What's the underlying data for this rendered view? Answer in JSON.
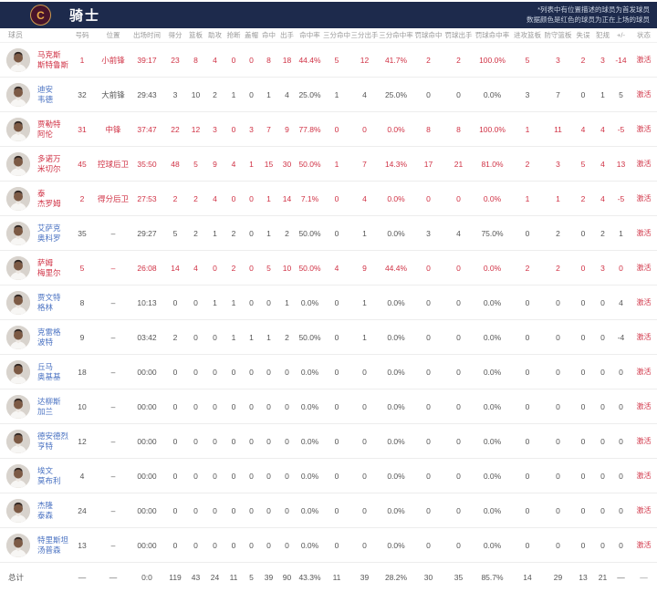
{
  "team_header": {
    "team_name": "骑士",
    "logo_letter": "C",
    "note_line1": "*列表中有位置描述的球员为首发球员",
    "note_line2": "数据颜色是红色的球员为正在上场的球员"
  },
  "colors": {
    "header_bg": "#1d2a4c",
    "on_court_red": "#d03245",
    "player_name_blue": "#4a72c2",
    "data_gray": "#555555",
    "column_header_gray": "#9a9a9a"
  },
  "columns": [
    "球员",
    "号码",
    "位置",
    "出场时间",
    "得分",
    "篮板",
    "助攻",
    "抢断",
    "盖帽",
    "命中",
    "出手",
    "命中率",
    "三分命中",
    "三分出手",
    "三分命中率",
    "罚球命中",
    "罚球出手",
    "罚球命中率",
    "进攻篮板",
    "防守篮板",
    "失误",
    "犯规",
    "+/-",
    "状态"
  ],
  "players": [
    {
      "name_line1": "马克斯",
      "name_line2": "斯特鲁斯",
      "number": "1",
      "position": "小前锋",
      "minutes": "39:17",
      "stats": [
        "23",
        "8",
        "4",
        "0",
        "0",
        "8",
        "18",
        "44.4%",
        "5",
        "12",
        "41.7%",
        "2",
        "2",
        "100.0%",
        "5",
        "3",
        "2",
        "3",
        "-14"
      ],
      "status": "激活",
      "on_court": true
    },
    {
      "name_line1": "迪安",
      "name_line2": "韦德",
      "number": "32",
      "position": "大前锋",
      "minutes": "29:43",
      "stats": [
        "3",
        "10",
        "2",
        "1",
        "0",
        "1",
        "4",
        "25.0%",
        "1",
        "4",
        "25.0%",
        "0",
        "0",
        "0.0%",
        "3",
        "7",
        "0",
        "1",
        "5"
      ],
      "status": "激活",
      "on_court": false
    },
    {
      "name_line1": "贾勒特",
      "name_line2": "阿伦",
      "number": "31",
      "position": "中锋",
      "minutes": "37:47",
      "stats": [
        "22",
        "12",
        "3",
        "0",
        "3",
        "7",
        "9",
        "77.8%",
        "0",
        "0",
        "0.0%",
        "8",
        "8",
        "100.0%",
        "1",
        "11",
        "4",
        "4",
        "-5"
      ],
      "status": "激活",
      "on_court": true
    },
    {
      "name_line1": "多诺万",
      "name_line2": "米切尔",
      "number": "45",
      "position": "控球后卫",
      "minutes": "35:50",
      "stats": [
        "48",
        "5",
        "9",
        "4",
        "1",
        "15",
        "30",
        "50.0%",
        "1",
        "7",
        "14.3%",
        "17",
        "21",
        "81.0%",
        "2",
        "3",
        "5",
        "4",
        "13"
      ],
      "status": "激活",
      "on_court": true
    },
    {
      "name_line1": "泰",
      "name_line2": "杰罗姆",
      "number": "2",
      "position": "得分后卫",
      "minutes": "27:53",
      "stats": [
        "2",
        "2",
        "4",
        "0",
        "0",
        "1",
        "14",
        "7.1%",
        "0",
        "4",
        "0.0%",
        "0",
        "0",
        "0.0%",
        "1",
        "1",
        "2",
        "4",
        "-5"
      ],
      "status": "激活",
      "on_court": true
    },
    {
      "name_line1": "艾萨克",
      "name_line2": "奥科罗",
      "number": "35",
      "position": "–",
      "minutes": "29:27",
      "stats": [
        "5",
        "2",
        "1",
        "2",
        "0",
        "1",
        "2",
        "50.0%",
        "0",
        "1",
        "0.0%",
        "3",
        "4",
        "75.0%",
        "0",
        "2",
        "0",
        "2",
        "1"
      ],
      "status": "激活",
      "on_court": false
    },
    {
      "name_line1": "萨姆",
      "name_line2": "梅里尔",
      "number": "5",
      "position": "–",
      "minutes": "26:08",
      "stats": [
        "14",
        "4",
        "0",
        "2",
        "0",
        "5",
        "10",
        "50.0%",
        "4",
        "9",
        "44.4%",
        "0",
        "0",
        "0.0%",
        "2",
        "2",
        "0",
        "3",
        "0"
      ],
      "status": "激活",
      "on_court": true
    },
    {
      "name_line1": "贾文特",
      "name_line2": "格林",
      "number": "8",
      "position": "–",
      "minutes": "10:13",
      "stats": [
        "0",
        "0",
        "1",
        "1",
        "0",
        "0",
        "1",
        "0.0%",
        "0",
        "1",
        "0.0%",
        "0",
        "0",
        "0.0%",
        "0",
        "0",
        "0",
        "0",
        "4"
      ],
      "status": "激活",
      "on_court": false
    },
    {
      "name_line1": "克雷格",
      "name_line2": "波特",
      "number": "9",
      "position": "–",
      "minutes": "03:42",
      "stats": [
        "2",
        "0",
        "0",
        "1",
        "1",
        "1",
        "2",
        "50.0%",
        "0",
        "1",
        "0.0%",
        "0",
        "0",
        "0.0%",
        "0",
        "0",
        "0",
        "0",
        "-4"
      ],
      "status": "激活",
      "on_court": false
    },
    {
      "name_line1": "丘马",
      "name_line2": "奥基基",
      "number": "18",
      "position": "–",
      "minutes": "00:00",
      "stats": [
        "0",
        "0",
        "0",
        "0",
        "0",
        "0",
        "0",
        "0.0%",
        "0",
        "0",
        "0.0%",
        "0",
        "0",
        "0.0%",
        "0",
        "0",
        "0",
        "0",
        "0"
      ],
      "status": "激活",
      "on_court": false
    },
    {
      "name_line1": "达柳斯",
      "name_line2": "加兰",
      "number": "10",
      "position": "–",
      "minutes": "00:00",
      "stats": [
        "0",
        "0",
        "0",
        "0",
        "0",
        "0",
        "0",
        "0.0%",
        "0",
        "0",
        "0.0%",
        "0",
        "0",
        "0.0%",
        "0",
        "0",
        "0",
        "0",
        "0"
      ],
      "status": "激活",
      "on_court": false
    },
    {
      "name_line1": "德安德烈",
      "name_line2": "亨特",
      "number": "12",
      "position": "–",
      "minutes": "00:00",
      "stats": [
        "0",
        "0",
        "0",
        "0",
        "0",
        "0",
        "0",
        "0.0%",
        "0",
        "0",
        "0.0%",
        "0",
        "0",
        "0.0%",
        "0",
        "0",
        "0",
        "0",
        "0"
      ],
      "status": "激活",
      "on_court": false
    },
    {
      "name_line1": "埃文",
      "name_line2": "莫布利",
      "number": "4",
      "position": "–",
      "minutes": "00:00",
      "stats": [
        "0",
        "0",
        "0",
        "0",
        "0",
        "0",
        "0",
        "0.0%",
        "0",
        "0",
        "0.0%",
        "0",
        "0",
        "0.0%",
        "0",
        "0",
        "0",
        "0",
        "0"
      ],
      "status": "激活",
      "on_court": false
    },
    {
      "name_line1": "杰隆",
      "name_line2": "泰森",
      "number": "24",
      "position": "–",
      "minutes": "00:00",
      "stats": [
        "0",
        "0",
        "0",
        "0",
        "0",
        "0",
        "0",
        "0.0%",
        "0",
        "0",
        "0.0%",
        "0",
        "0",
        "0.0%",
        "0",
        "0",
        "0",
        "0",
        "0"
      ],
      "status": "激活",
      "on_court": false
    },
    {
      "name_line1": "特里斯坦",
      "name_line2": "汤普森",
      "number": "13",
      "position": "–",
      "minutes": "00:00",
      "stats": [
        "0",
        "0",
        "0",
        "0",
        "0",
        "0",
        "0",
        "0.0%",
        "0",
        "0",
        "0.0%",
        "0",
        "0",
        "0.0%",
        "0",
        "0",
        "0",
        "0",
        "0"
      ],
      "status": "激活",
      "on_court": false
    }
  ],
  "totals": {
    "label": "总计",
    "number": "—",
    "position": "—",
    "minutes": "0:0",
    "stats": [
      "119",
      "43",
      "24",
      "11",
      "5",
      "39",
      "90",
      "43.3%",
      "11",
      "39",
      "28.2%",
      "30",
      "35",
      "85.7%",
      "14",
      "29",
      "13",
      "21",
      "—"
    ],
    "status": "—"
  }
}
